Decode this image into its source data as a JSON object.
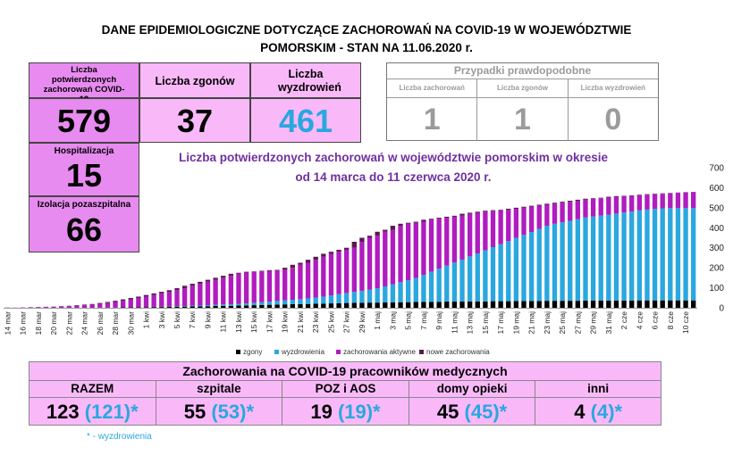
{
  "header": {
    "line1": "DANE EPIDEMIOLOGICZNE DOTYCZĄCE ZACHOROWAŃ NA COVID-19 W WOJEWÓDZTWIE",
    "line2": "POMORSKIM - STAN NA 11.06.2020 r."
  },
  "stats": {
    "confirmed_label": "Liczba potwierdzonych zachorowań COVID-19",
    "confirmed_value": "579",
    "deaths_label": "Liczba zgonów",
    "deaths_value": "37",
    "recovered_label": "Liczba wyzdrowień",
    "recovered_value": "461",
    "hospital_label": "Hospitalizacja",
    "hospital_value": "15",
    "isolation_label": "Izolacja pozaszpitalna",
    "isolation_value": "66"
  },
  "probable": {
    "title": "Przypadki prawdopodobne",
    "cases_label": "Liczba zachorowań",
    "cases_value": "1",
    "deaths_label": "Liczba zgonów",
    "deaths_value": "1",
    "recovered_label": "Liczba wyzdrowień",
    "recovered_value": "0"
  },
  "chart_title": {
    "line1": "Liczba potwierdzonych zachorowań w województwie pomorskim w okresie",
    "line2": "od 14 marca do 11 czerwca 2020 r."
  },
  "chart_data": {
    "type": "bar",
    "stacked": true,
    "ylim": [
      0,
      700
    ],
    "yticks": [
      "0",
      "100",
      "200",
      "300",
      "400",
      "500",
      "600",
      "700"
    ],
    "xticks": [
      "14 mar",
      "16 mar",
      "18 mar",
      "20 mar",
      "22 mar",
      "24 mar",
      "26 mar",
      "28 mar",
      "30 mar",
      "1 kwi",
      "3 kwi",
      "5 kwi",
      "7 kwi",
      "9 kwi",
      "11 kwi",
      "13 kwi",
      "15 kwi",
      "17 kwi",
      "19 kwi",
      "21 kwi",
      "23 kwi",
      "25 kwi",
      "27 kwi",
      "29 kwi",
      "1 maj",
      "3 maj",
      "5 maj",
      "7 maj",
      "9 maj",
      "11 maj",
      "13 maj",
      "15 maj",
      "17 maj",
      "19 maj",
      "21 maj",
      "23 maj",
      "25 maj",
      "27 maj",
      "29 maj",
      "31 maj",
      "2 cze",
      "4 cze",
      "6 cze",
      "8 cze",
      "10 cze"
    ],
    "legend": [
      "zgony",
      "wyzdrowienia",
      "zachorowania aktywne",
      "nowe zachorowania"
    ],
    "legend_position": "bottom",
    "colors": {
      "deaths": "#000000",
      "recovered": "#2aa7df",
      "active": "#b01cbf",
      "new": "#5a1a50"
    },
    "total": [
      1,
      1,
      2,
      3,
      4,
      5,
      6,
      8,
      10,
      13,
      16,
      19,
      24,
      29,
      35,
      42,
      49,
      56,
      64,
      72,
      80,
      88,
      98,
      110,
      120,
      130,
      140,
      150,
      160,
      170,
      175,
      180,
      182,
      185,
      188,
      190,
      200,
      215,
      225,
      240,
      255,
      270,
      280,
      290,
      300,
      330,
      350,
      360,
      380,
      390,
      410,
      420,
      425,
      430,
      440,
      445,
      450,
      455,
      460,
      470,
      475,
      480,
      485,
      488,
      490,
      495,
      500,
      505,
      510,
      515,
      520,
      525,
      530,
      535,
      540,
      545,
      548,
      550,
      555,
      558,
      560,
      562,
      565,
      568,
      570,
      572,
      574,
      576,
      578,
      579
    ],
    "deaths": [
      0,
      0,
      0,
      0,
      0,
      0,
      0,
      0,
      0,
      0,
      0,
      0,
      1,
      1,
      1,
      2,
      2,
      3,
      3,
      4,
      4,
      5,
      6,
      6,
      7,
      7,
      8,
      9,
      10,
      10,
      11,
      12,
      13,
      14,
      15,
      16,
      17,
      18,
      18,
      19,
      20,
      21,
      22,
      23,
      24,
      25,
      25,
      26,
      26,
      27,
      27,
      28,
      28,
      29,
      29,
      30,
      30,
      31,
      31,
      31,
      32,
      32,
      32,
      33,
      33,
      33,
      34,
      34,
      34,
      34,
      35,
      35,
      35,
      35,
      35,
      36,
      36,
      36,
      36,
      36,
      36,
      36,
      37,
      37,
      37,
      37,
      37,
      37,
      37,
      37
    ],
    "recovered": [
      0,
      0,
      0,
      0,
      0,
      0,
      0,
      0,
      0,
      0,
      0,
      0,
      0,
      0,
      0,
      0,
      0,
      0,
      0,
      1,
      1,
      1,
      2,
      2,
      3,
      4,
      5,
      6,
      7,
      8,
      9,
      10,
      12,
      14,
      16,
      18,
      20,
      22,
      25,
      28,
      31,
      35,
      40,
      45,
      50,
      55,
      60,
      65,
      72,
      80,
      90,
      100,
      110,
      120,
      135,
      150,
      165,
      180,
      195,
      210,
      225,
      240,
      255,
      270,
      285,
      300,
      315,
      330,
      345,
      360,
      375,
      385,
      392,
      400,
      408,
      415,
      420,
      425,
      430,
      435,
      440,
      445,
      450,
      454,
      457,
      460,
      461,
      461,
      461,
      461
    ]
  },
  "medical": {
    "title": "Zachorowania na COVID-19 pracowników medycznych",
    "categories": [
      {
        "label": "RAZEM",
        "value": "123",
        "recovered": "(121)*"
      },
      {
        "label": "szpitale",
        "value": "55",
        "recovered": "(53)*"
      },
      {
        "label": "POZ i AOS",
        "value": "19",
        "recovered": "(19)*"
      },
      {
        "label": "domy opieki",
        "value": "45",
        "recovered": "(45)*"
      },
      {
        "label": "inni",
        "value": "4",
        "recovered": "(4)*"
      }
    ],
    "footnote": "* - wyzdrowienia"
  }
}
